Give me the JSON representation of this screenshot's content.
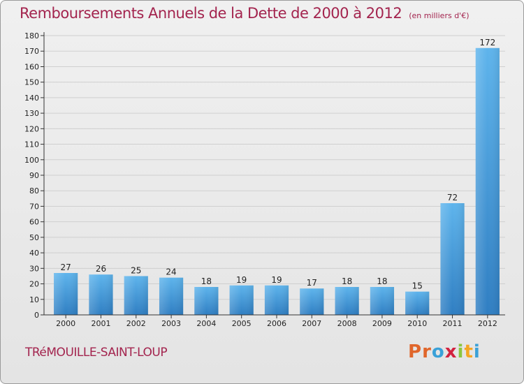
{
  "header": {
    "title": "Remboursements Annuels de la Dette de 2000 à 2012",
    "subtitle": "(en milliers d'€)"
  },
  "footer": {
    "location": "TRéMOUILLE-SAINT-LOUP",
    "logo_letters": [
      "P",
      "r",
      "o",
      "x",
      "i",
      "t",
      "i"
    ],
    "logo_colors": [
      "#e0662b",
      "#e0662b",
      "#3aa1d8",
      "#d2223f",
      "#8cc63f",
      "#f5a623",
      "#3aa1d8"
    ]
  },
  "chart_data": {
    "type": "bar",
    "title": "Remboursements Annuels de la Dette de 2000 à 2012",
    "subtitle": "(en milliers d'€)",
    "categories": [
      "2000",
      "2001",
      "2002",
      "2003",
      "2004",
      "2005",
      "2006",
      "2007",
      "2008",
      "2009",
      "2010",
      "2011",
      "2012"
    ],
    "values": [
      27,
      26,
      25,
      24,
      18,
      19,
      19,
      17,
      18,
      18,
      15,
      72,
      172
    ],
    "ylim": [
      0,
      180
    ],
    "yticks": [
      0,
      10,
      20,
      30,
      40,
      50,
      60,
      70,
      80,
      90,
      100,
      110,
      120,
      130,
      140,
      150,
      160,
      170,
      180
    ],
    "grid": true,
    "bar_color": "#3a93d6",
    "bar_color_light": "#5eb4ec",
    "bar_color_dark": "#2f7ec2"
  }
}
